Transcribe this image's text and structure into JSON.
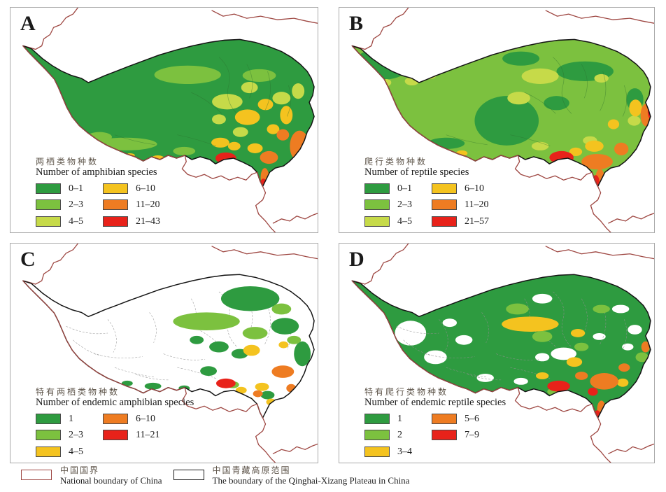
{
  "panels": [
    {
      "label": "A",
      "title_zh": "两栖类物种数",
      "title_en": "Number of amphibian species",
      "classes": [
        {
          "label": "0–1",
          "color": "#2e9b40"
        },
        {
          "label": "2–3",
          "color": "#7cc13f"
        },
        {
          "label": "4–5",
          "color": "#c6da49"
        },
        {
          "label": "6–10",
          "color": "#f4c31f"
        },
        {
          "label": "11–20",
          "color": "#ee7c22"
        },
        {
          "label": "21–43",
          "color": "#e8221a"
        }
      ]
    },
    {
      "label": "B",
      "title_zh": "爬行类物种数",
      "title_en": "Number of reptile species",
      "classes": [
        {
          "label": "0–1",
          "color": "#2e9b40"
        },
        {
          "label": "2–3",
          "color": "#7cc13f"
        },
        {
          "label": "4–5",
          "color": "#c6da49"
        },
        {
          "label": "6–10",
          "color": "#f4c31f"
        },
        {
          "label": "11–20",
          "color": "#ee7c22"
        },
        {
          "label": "21–57",
          "color": "#e8221a"
        }
      ]
    },
    {
      "label": "C",
      "title_zh": "特有两栖类物种数",
      "title_en": "Number of endemic amphibian species",
      "classes": [
        {
          "label": "1",
          "color": "#2e9b40"
        },
        {
          "label": "2–3",
          "color": "#7cc13f"
        },
        {
          "label": "4–5",
          "color": "#f4c31f"
        },
        {
          "label": "6–10",
          "color": "#ee7c22"
        },
        {
          "label": "11–21",
          "color": "#e8221a"
        }
      ]
    },
    {
      "label": "D",
      "title_zh": "特有爬行类物种数",
      "title_en": "Number of endemic reptile species",
      "classes": [
        {
          "label": "1",
          "color": "#2e9b40"
        },
        {
          "label": "2",
          "color": "#7cc13f"
        },
        {
          "label": "3–4",
          "color": "#f4c31f"
        },
        {
          "label": "5–6",
          "color": "#ee7c22"
        },
        {
          "label": "7–9",
          "color": "#e8221a"
        }
      ]
    }
  ],
  "boundary_legend": {
    "items": [
      {
        "zh": "中国国界",
        "en": "National boundary of China",
        "color": "#9e4742"
      },
      {
        "zh": "中国青藏高原范围",
        "en": "The boundary of the Qinghai-Xizang Plateau in China",
        "color": "#1a1a1a"
      }
    ]
  },
  "map_colors": {
    "plateau_outline": "#141414",
    "national_boundary": "#9e4742",
    "background": "#ffffff"
  }
}
